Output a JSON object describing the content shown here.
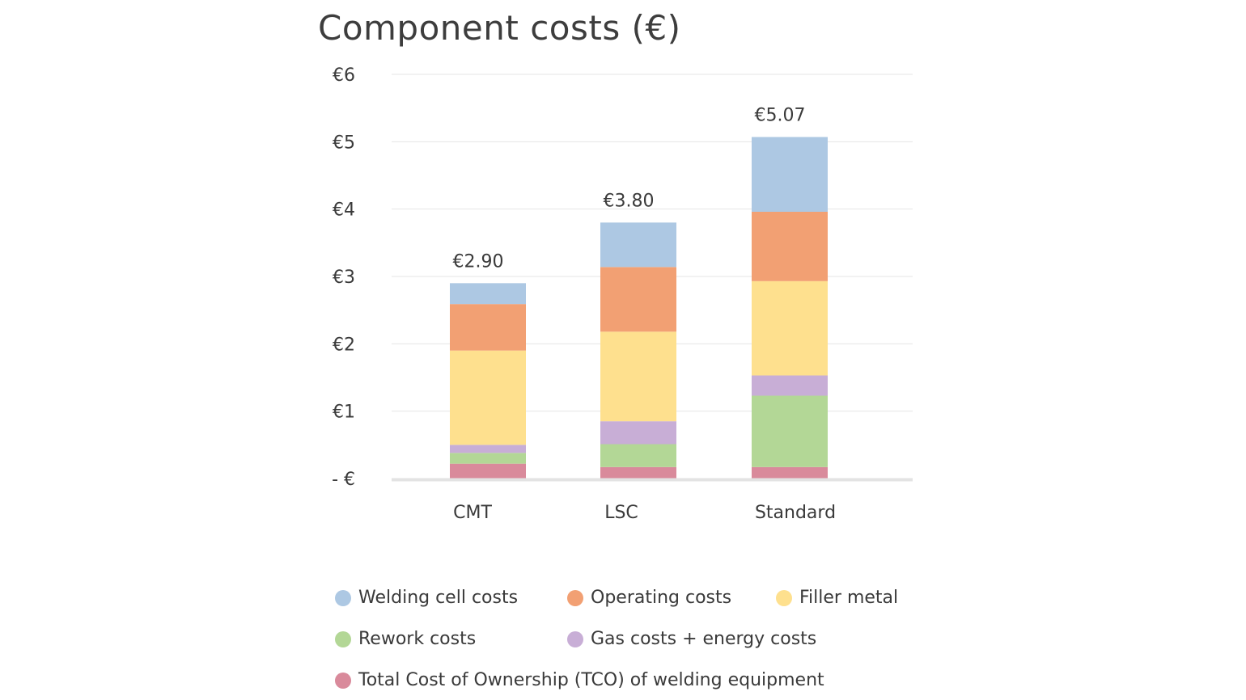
{
  "chart_data": {
    "type": "bar",
    "stacked": true,
    "title": "Component costs (€)",
    "categories": [
      "CMT",
      "LSC",
      "Standard"
    ],
    "totals": [
      "€2.90",
      "€3.80",
      "€5.07"
    ],
    "ylim": [
      0,
      6
    ],
    "yticks": [
      {
        "value": 0,
        "label": "- €"
      },
      {
        "value": 1,
        "label": "€1"
      },
      {
        "value": 2,
        "label": "€2"
      },
      {
        "value": 3,
        "label": "€3"
      },
      {
        "value": 4,
        "label": "€4"
      },
      {
        "value": 5,
        "label": "€5"
      },
      {
        "value": 6,
        "label": "€6"
      }
    ],
    "grid": true,
    "legend_position": "bottom",
    "series": [
      {
        "name": "Total Cost of Ownership (TCO) of welding equipment",
        "color": "#d98a9b",
        "values": [
          0.22,
          0.17,
          0.17
        ]
      },
      {
        "name": "Rework costs",
        "color": "#b3d796",
        "values": [
          0.16,
          0.34,
          1.06
        ]
      },
      {
        "name": "Gas costs + energy costs",
        "color": "#c8aed6",
        "values": [
          0.12,
          0.34,
          0.3
        ]
      },
      {
        "name": "Filler metal",
        "color": "#fee08e",
        "values": [
          1.4,
          1.33,
          1.4
        ]
      },
      {
        "name": "Operating costs",
        "color": "#f2a073",
        "values": [
          0.69,
          0.96,
          1.03
        ]
      },
      {
        "name": "Welding cell costs",
        "color": "#adc8e3",
        "values": [
          0.31,
          0.66,
          1.11
        ]
      }
    ]
  },
  "legend": {
    "items": [
      {
        "label": "Welding cell costs",
        "color": "#adc8e3"
      },
      {
        "label": "Operating costs",
        "color": "#f2a073"
      },
      {
        "label": "Filler metal",
        "color": "#fee08e"
      },
      {
        "label": "Rework costs",
        "color": "#b3d796"
      },
      {
        "label": "Gas costs + energy costs",
        "color": "#c8aed6"
      },
      {
        "label": "Total Cost of Ownership (TCO) of welding equipment",
        "color": "#d98a9b"
      }
    ]
  }
}
